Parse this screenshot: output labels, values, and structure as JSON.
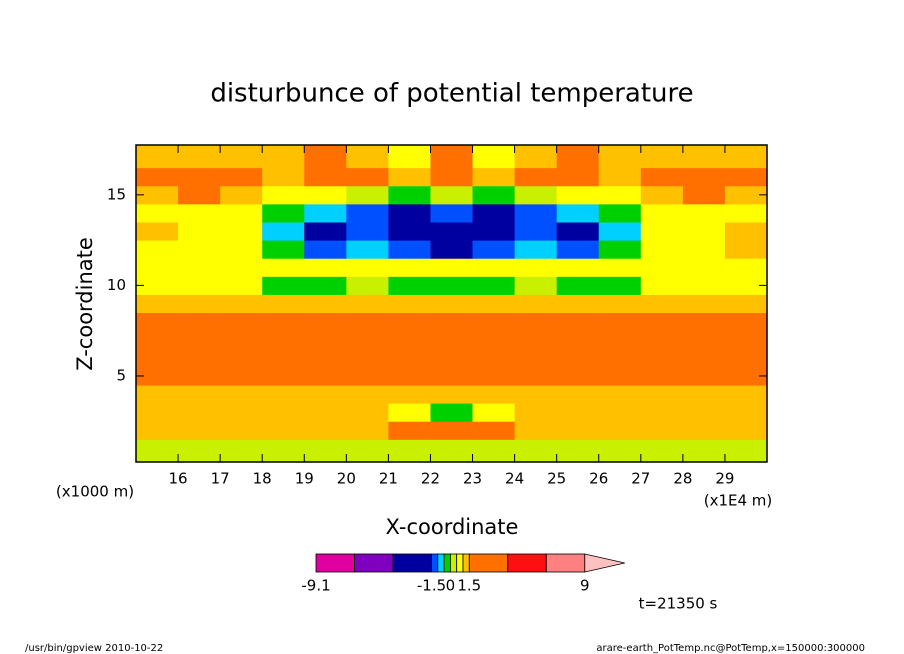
{
  "chart_data": {
    "type": "contour",
    "title": "disturbunce of potential temperature",
    "xlabel": "X-coordinate",
    "ylabel": "Z-coordinate",
    "xunit": "(x1E4 m)",
    "yunit": "(x1000 m)",
    "time_label": "t=21350 s",
    "footer_left": "/usr/bin/gpview  2010-10-22",
    "footer_right": "arare-earth_PotTemp.nc@PotTemp,x=150000:300000",
    "xlim": [
      15,
      30
    ],
    "ylim": [
      0.25,
      17.75
    ],
    "xticks": [
      16,
      17,
      18,
      19,
      20,
      21,
      22,
      23,
      24,
      25,
      26,
      27,
      28,
      29
    ],
    "yticks": [
      5,
      10,
      15
    ],
    "x": [
      15.5,
      16.5,
      17.5,
      18.5,
      19.5,
      20.5,
      21.5,
      22.5,
      23.5,
      24.5,
      25.5,
      26.5,
      27.5,
      28.5,
      29.5
    ],
    "y": [
      1,
      2,
      3,
      4,
      5,
      6,
      7,
      8,
      9,
      10,
      11,
      12,
      13,
      14,
      15,
      16,
      17
    ],
    "z": [
      [
        0.3,
        0.3,
        0.3,
        0.3,
        0.3,
        0.3,
        0.3,
        0.3,
        0.3,
        0.3,
        0.3,
        0.3,
        0.3,
        0.3,
        0.3
      ],
      [
        1.2,
        1.2,
        1.2,
        1.2,
        1.2,
        1.2,
        1.5,
        2,
        1.5,
        1.2,
        1.2,
        1.2,
        1.2,
        1.2,
        1.2
      ],
      [
        1.2,
        1.2,
        1.2,
        1.2,
        1.2,
        1.2,
        0.8,
        -0.3,
        0.8,
        1.2,
        1.2,
        1.2,
        1.2,
        1.2,
        1.2
      ],
      [
        1.3,
        1.3,
        1.3,
        1.3,
        1.3,
        1.3,
        1.3,
        1.3,
        1.3,
        1.3,
        1.3,
        1.3,
        1.3,
        1.3,
        1.3
      ],
      [
        3,
        3,
        3,
        3,
        3,
        3,
        3,
        3,
        3,
        3,
        3,
        3,
        3,
        3,
        3
      ],
      [
        3,
        3,
        3,
        3,
        3,
        3,
        3,
        3,
        3,
        3,
        3,
        3,
        3,
        3,
        3
      ],
      [
        3,
        3,
        3,
        3,
        3,
        3,
        3,
        3,
        3,
        3,
        3,
        3,
        3,
        3,
        3
      ],
      [
        2,
        2,
        2,
        2,
        2,
        2,
        2,
        2,
        2,
        2,
        2,
        2,
        2,
        2,
        2
      ],
      [
        1.2,
        1.2,
        1.2,
        1.2,
        1.2,
        1.2,
        1.2,
        1.2,
        1.2,
        1.2,
        1.2,
        1.2,
        1.2,
        1.2,
        1.2
      ],
      [
        0.7,
        0.7,
        0.7,
        -0.3,
        -0.3,
        0.3,
        -0.3,
        -0.3,
        -0.3,
        0.3,
        -0.3,
        -0.3,
        0.7,
        0.7,
        0.7
      ],
      [
        0.7,
        0.7,
        0.7,
        0.7,
        0.7,
        0.7,
        0.7,
        0.7,
        0.7,
        0.7,
        0.7,
        0.7,
        0.7,
        0.7,
        0.7
      ],
      [
        0.8,
        0.8,
        0.7,
        -0.3,
        -1.2,
        -0.8,
        -1.3,
        -1.8,
        -1.3,
        -0.8,
        -1.2,
        -0.3,
        0.7,
        0.8,
        1.2
      ],
      [
        1.3,
        0.8,
        0.7,
        -0.7,
        -2,
        -1.2,
        -2,
        -2.2,
        -2,
        -1.2,
        -2,
        -0.7,
        0.7,
        0.8,
        1.3
      ],
      [
        0.8,
        0.8,
        0.7,
        -0.3,
        -0.8,
        -1.2,
        -1.8,
        -1.5,
        -1.8,
        -1.2,
        -0.8,
        -0.3,
        0.7,
        0.8,
        0.8
      ],
      [
        1.3,
        1.5,
        1.2,
        0.8,
        0.7,
        0.3,
        -0.3,
        0.2,
        -0.3,
        0.3,
        0.7,
        0.8,
        1.2,
        1.5,
        1.3
      ],
      [
        1.5,
        2.5,
        1.5,
        1.2,
        2.5,
        1.5,
        1,
        1.5,
        1,
        1.5,
        2.5,
        1.2,
        1.5,
        2.5,
        1.5
      ],
      [
        1.3,
        1.3,
        1.2,
        1,
        2,
        1.2,
        0.8,
        2,
        0.8,
        1.2,
        2,
        1,
        1.2,
        1.3,
        1.3
      ]
    ],
    "levels": [
      -9.1,
      -6.5,
      -4,
      -1.5,
      -1,
      -0.5,
      0,
      0.5,
      1,
      1.5,
      4,
      6.5,
      9
    ],
    "colors": [
      "#e000a0",
      "#8000c0",
      "#0000a0",
      "#0050ff",
      "#00d0ff",
      "#00d000",
      "#c8f000",
      "#ffff00",
      "#ffc000",
      "#ff7000",
      "#ff1010",
      "#ff8080"
    ],
    "extend_color": "#ffc0c0",
    "colorbar_ticks": [
      -9.1,
      -1.5,
      0,
      1.5,
      9
    ]
  }
}
